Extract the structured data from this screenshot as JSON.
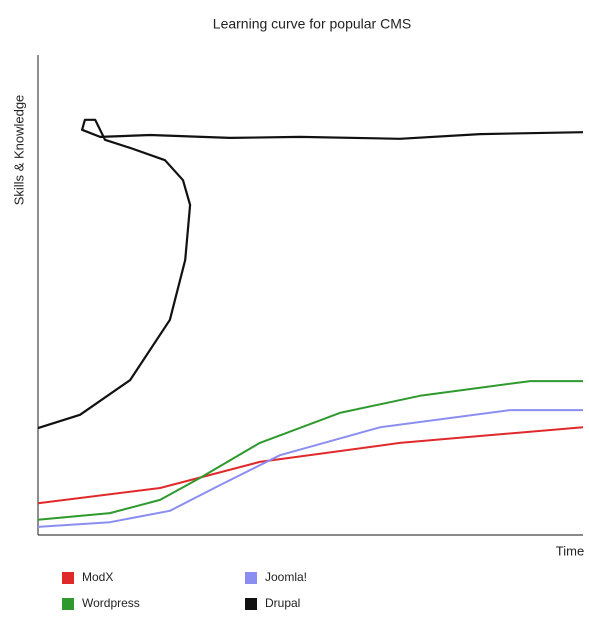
{
  "chart_data": {
    "type": "line",
    "title": "Learning curve for popular CMS",
    "x_label": "Time",
    "y_label": "Skills & Knowledge",
    "xlim": [
      0,
      100
    ],
    "ylim": [
      0,
      100
    ],
    "series": [
      {
        "name": "ModX",
        "color": "#e0292b",
        "x": [
          0,
          22.4,
          40.7,
          66.4,
          100
        ],
        "values": [
          6.7,
          9.9,
          15.4,
          19.4,
          22.7
        ]
      },
      {
        "name": "Joomla!",
        "color": "#8b8ef0",
        "x": [
          0,
          13.2,
          24.2,
          33.4,
          44.4,
          62.8,
          86.6,
          100
        ],
        "values": [
          1.7,
          2.7,
          5.1,
          10.5,
          16.8,
          22.7,
          26.3,
          26.3
        ]
      },
      {
        "name": "Wordpress",
        "color": "#2e9a2e",
        "x": [
          0,
          13.2,
          22.4,
          29.7,
          40.7,
          55.4,
          70.1,
          90.3,
          100
        ],
        "values": [
          3.2,
          4.6,
          7.4,
          12,
          19.4,
          25.7,
          29.3,
          32.4,
          32.4
        ]
      },
      {
        "name": "Drupal",
        "color": "#111111",
        "x": [
          0,
          7.7,
          16.9,
          24.2,
          27,
          27.9,
          26.6,
          23.3,
          16.9,
          12.3,
          10.5,
          8.6,
          8.1,
          11.4,
          20.6,
          35.2,
          48.1,
          66.4,
          81.1,
          100
        ],
        "values": [
          22.5,
          25.3,
          32.6,
          45.3,
          57.9,
          69.5,
          74.7,
          78.9,
          81.5,
          83.2,
          87.4,
          87.4,
          85.3,
          83.8,
          84.2,
          83.6,
          83.8,
          83.4,
          84.4,
          84.8
        ]
      }
    ]
  }
}
